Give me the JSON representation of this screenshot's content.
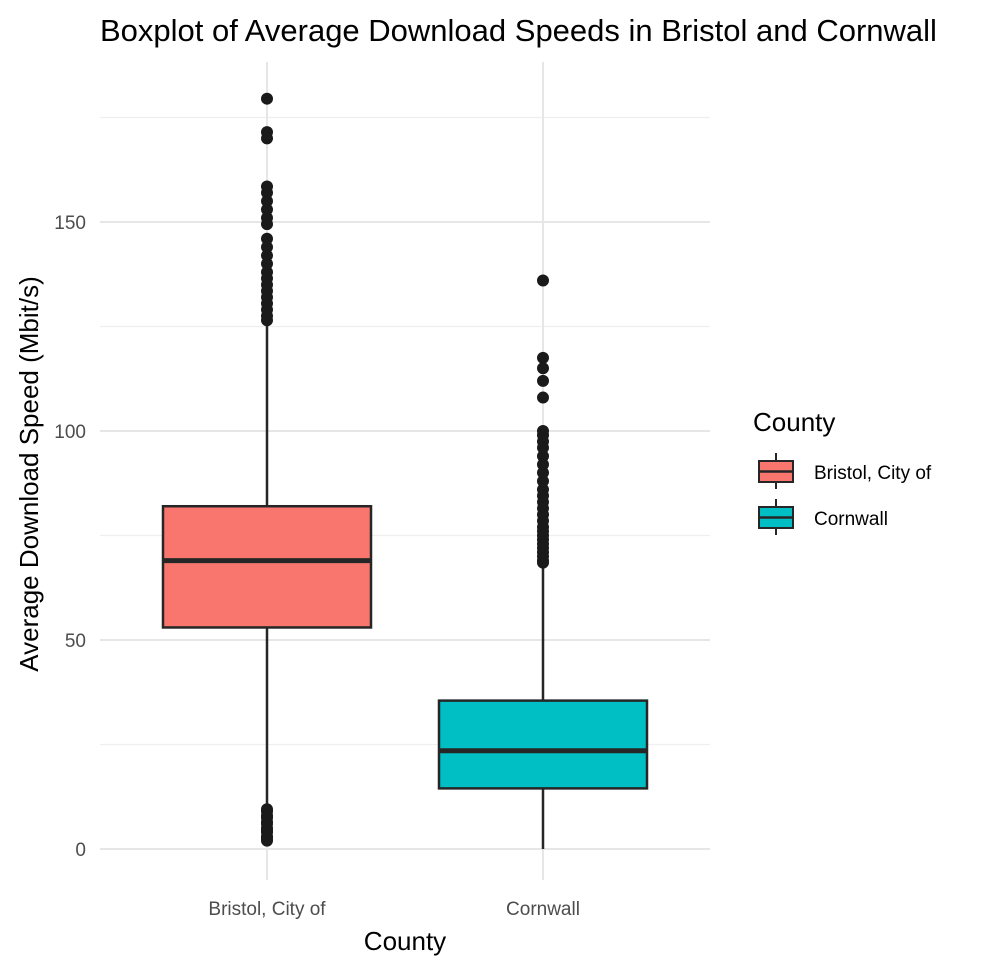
{
  "chart_data": {
    "type": "boxplot",
    "title": "Boxplot of Average Download Speeds in Bristol and Cornwall",
    "xlabel": "County",
    "ylabel": "Average Download Speed (Mbit/s)",
    "ylim": [
      -6,
      185
    ],
    "yticks": [
      0,
      50,
      100,
      150
    ],
    "grid": true,
    "legend": {
      "title": "County",
      "position": "right"
    },
    "categories": [
      "Bristol, City of",
      "Cornwall"
    ],
    "series": [
      {
        "name": "Bristol, City of",
        "color": "#F8766D",
        "q1": 53,
        "median": 69,
        "q3": 82,
        "whisker_low": 10,
        "whisker_high": 126,
        "outliers": [
          179.5,
          171.5,
          170,
          158.5,
          157,
          155,
          153,
          151,
          149.5,
          146,
          144,
          142,
          140,
          138,
          136.5,
          135,
          133.5,
          132,
          130.5,
          129,
          127.5,
          126.5,
          9.5,
          9,
          8,
          7.5,
          6.5,
          6,
          5,
          4.5,
          4,
          3,
          2.5,
          2
        ]
      },
      {
        "name": "Cornwall",
        "color": "#00BFC4",
        "q1": 14.5,
        "median": 23.5,
        "q3": 35.5,
        "whisker_low": 0,
        "whisker_high": 68,
        "outliers": [
          136,
          117.5,
          115,
          112,
          108,
          100,
          99,
          97.5,
          96,
          94,
          92,
          90,
          88,
          86,
          84.5,
          83,
          81.5,
          80,
          78.5,
          77,
          76,
          75,
          74,
          73,
          72,
          71,
          70,
          69,
          68.5
        ]
      }
    ]
  }
}
